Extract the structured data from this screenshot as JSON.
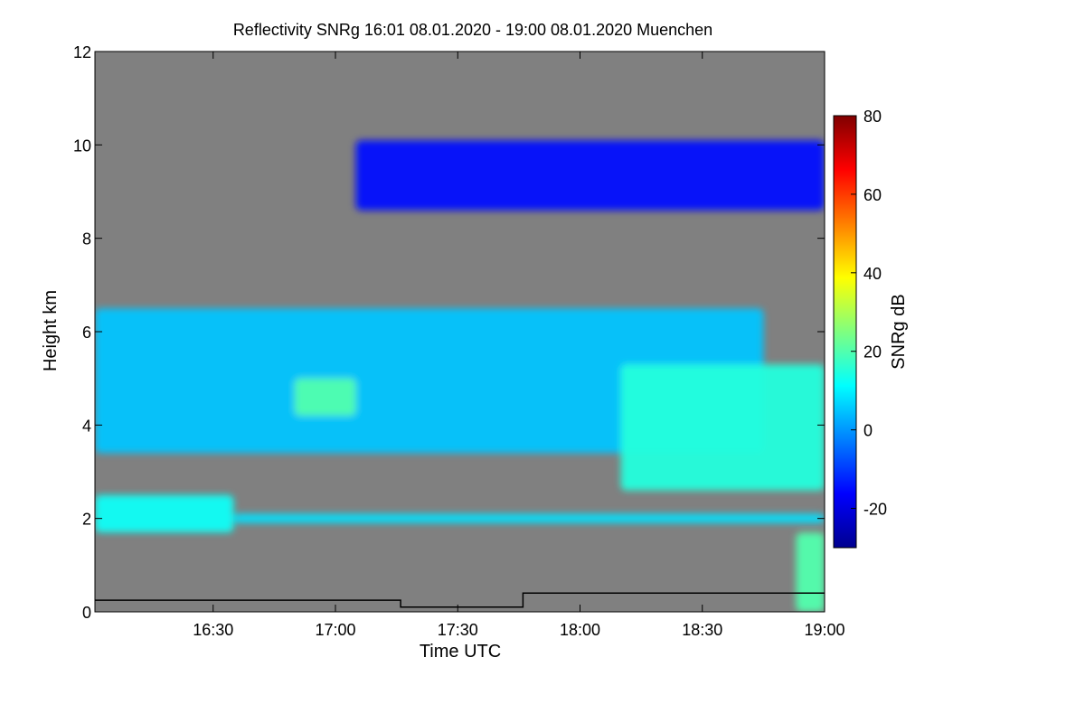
{
  "chart_data": {
    "type": "heatmap",
    "title": "Reflectivity SNRg   16:01 08.01.2020 - 19:00 08.01.2020 Muenchen",
    "xlabel": "Time UTC",
    "ylabel": "Height km",
    "x_range": [
      "16:01",
      "19:00"
    ],
    "x_ticks": [
      "16:30",
      "17:00",
      "17:30",
      "18:00",
      "18:30",
      "19:00"
    ],
    "y_range": [
      0,
      12
    ],
    "y_ticks": [
      "0",
      "2",
      "4",
      "6",
      "8",
      "10",
      "12"
    ],
    "background_color": "#808080",
    "colorbar": {
      "label": "SNRg dB",
      "range": [
        -30,
        80
      ],
      "ticks": [
        "-20",
        "0",
        "20",
        "40",
        "60",
        "80"
      ],
      "colormap": "jet"
    },
    "layers": [
      {
        "feature": "upper cloud",
        "start": "17:05",
        "end": "19:00",
        "bottom_km": 8.6,
        "top_km": 10.1,
        "snr_db": -15
      },
      {
        "feature": "main cloud",
        "start": "16:01",
        "end": "18:45",
        "bottom_km": 3.4,
        "top_km": 6.5,
        "snr_db": 5
      },
      {
        "feature": "main cloud core",
        "start": "16:50",
        "end": "17:05",
        "bottom_km": 4.2,
        "top_km": 5.0,
        "snr_db": 20
      },
      {
        "feature": "lower cloud",
        "start": "16:01",
        "end": "16:35",
        "bottom_km": 1.7,
        "top_km": 2.5,
        "snr_db": 12
      },
      {
        "feature": "thin layer",
        "start": "16:35",
        "end": "19:00",
        "bottom_km": 1.9,
        "top_km": 2.1,
        "snr_db": 8
      },
      {
        "feature": "late cloud",
        "start": "18:10",
        "end": "19:00",
        "bottom_km": 2.6,
        "top_km": 5.3,
        "snr_db": 15
      },
      {
        "feature": "precipitation",
        "start": "18:53",
        "end": "19:00",
        "bottom_km": 0,
        "top_km": 1.7,
        "snr_db": 20
      }
    ],
    "black_line": [
      {
        "time": "16:01",
        "height_km": 0.25
      },
      {
        "time": "17:16",
        "height_km": 0.25
      },
      {
        "time": "17:16",
        "height_km": 0.1
      },
      {
        "time": "17:46",
        "height_km": 0.1
      },
      {
        "time": "17:46",
        "height_km": 0.4
      },
      {
        "time": "19:00",
        "height_km": 0.4
      }
    ]
  }
}
